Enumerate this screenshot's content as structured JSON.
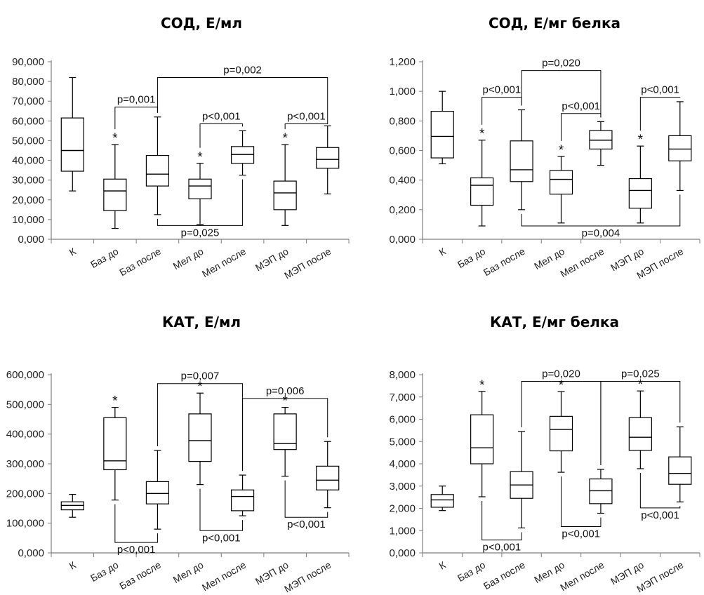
{
  "chart_data": [
    {
      "type": "box",
      "title": "СОД, Е/мл",
      "categories": [
        "К",
        "Баз до",
        "Баз после",
        "Мел до",
        "Мел после",
        "МЭП до",
        "МЭП после"
      ],
      "boxes": [
        {
          "min": 24500,
          "q1": 34500,
          "median": 45000,
          "q3": 61500,
          "max": 82000
        },
        {
          "min": 5500,
          "q1": 14500,
          "median": 24500,
          "q3": 30500,
          "max": 48000
        },
        {
          "min": 12500,
          "q1": 27000,
          "median": 33000,
          "q3": 42500,
          "max": 62000
        },
        {
          "min": 7500,
          "q1": 20500,
          "median": 27000,
          "q3": 30500,
          "max": 38500
        },
        {
          "min": 32500,
          "q1": 38500,
          "median": 43000,
          "q3": 47000,
          "max": 55000
        },
        {
          "min": 7000,
          "q1": 15000,
          "median": 23500,
          "q3": 29500,
          "max": 48000
        },
        {
          "min": 23000,
          "q1": 36000,
          "median": 40500,
          "q3": 46500,
          "max": 57500
        }
      ],
      "ylim": [
        0,
        90000
      ],
      "yticks": [
        0,
        10000,
        20000,
        30000,
        40000,
        50000,
        60000,
        70000,
        80000,
        90000
      ],
      "ytick_labels": [
        "0,000",
        "10,000",
        "20,000",
        "30,000",
        "40,000",
        "50,000",
        "60,000",
        "70,000",
        "80,000",
        "90,000"
      ],
      "significance_markers": [
        {
          "label": "*",
          "category": 1
        },
        {
          "label": "*",
          "category": 3
        },
        {
          "label": "*",
          "category": 5
        }
      ],
      "comparisons": [
        {
          "from": 1,
          "to": 2,
          "label": "p=0,001",
          "side": "top",
          "y": 67000
        },
        {
          "from": 3,
          "to": 4,
          "label": "p<0,001",
          "side": "top",
          "y": 58500
        },
        {
          "from": 5,
          "to": 6,
          "label": "p<0,001",
          "side": "top",
          "y": 58500
        },
        {
          "from": 2,
          "to": 6,
          "label": "p=0,002",
          "side": "top",
          "y": 82000
        },
        {
          "from": 2,
          "to": 4,
          "label": "p=0,025",
          "side": "bottom",
          "y": 7000
        }
      ]
    },
    {
      "type": "box",
      "title": "СОД, Е/мг белка",
      "categories": [
        "К",
        "Баз до",
        "Баз после",
        "Мел до",
        "Мел после",
        "МЭП до",
        "МЭП после"
      ],
      "boxes": [
        {
          "min": 0.51,
          "q1": 0.55,
          "median": 0.695,
          "q3": 0.865,
          "max": 1.0
        },
        {
          "min": 0.09,
          "q1": 0.23,
          "median": 0.365,
          "q3": 0.415,
          "max": 0.67
        },
        {
          "min": 0.2,
          "q1": 0.39,
          "median": 0.47,
          "q3": 0.665,
          "max": 0.875
        },
        {
          "min": 0.11,
          "q1": 0.305,
          "median": 0.405,
          "q3": 0.465,
          "max": 0.56
        },
        {
          "min": 0.5,
          "q1": 0.61,
          "median": 0.67,
          "q3": 0.735,
          "max": 0.795
        },
        {
          "min": 0.11,
          "q1": 0.21,
          "median": 0.33,
          "q3": 0.41,
          "max": 0.63
        },
        {
          "min": 0.33,
          "q1": 0.53,
          "median": 0.61,
          "q3": 0.7,
          "max": 0.93
        }
      ],
      "ylim": [
        0,
        1.2
      ],
      "yticks": [
        0,
        0.2,
        0.4,
        0.6,
        0.8,
        1.0,
        1.2
      ],
      "ytick_labels": [
        "0,000",
        "0,200",
        "0,400",
        "0,600",
        "0,800",
        "1,000",
        "1,200"
      ],
      "significance_markers": [
        {
          "label": "*",
          "category": 1
        },
        {
          "label": "*",
          "category": 3
        },
        {
          "label": "*",
          "category": 5
        }
      ],
      "comparisons": [
        {
          "from": 1,
          "to": 2,
          "label": "p<0,001",
          "side": "top",
          "y": 0.96
        },
        {
          "from": 3,
          "to": 4,
          "label": "p<0,001",
          "side": "top",
          "y": 0.85
        },
        {
          "from": 5,
          "to": 6,
          "label": "p<0,001",
          "side": "top",
          "y": 0.96
        },
        {
          "from": 2,
          "to": 4,
          "label": "p=0,020",
          "side": "top",
          "y": 1.14
        },
        {
          "from": 2,
          "to": 6,
          "label": "p=0,004",
          "side": "bottom",
          "y": 0.09
        }
      ]
    },
    {
      "type": "box",
      "title": "КАТ, Е/мл",
      "categories": [
        "К",
        "Баз до",
        "Баз после",
        "Мел до",
        "Мел после",
        "МЭП до",
        "МЭП после"
      ],
      "boxes": [
        {
          "min": 120000,
          "q1": 145000,
          "median": 160000,
          "q3": 172000,
          "max": 197000
        },
        {
          "min": 178000,
          "q1": 280000,
          "median": 310000,
          "q3": 455000,
          "max": 490000
        },
        {
          "min": 80000,
          "q1": 165000,
          "median": 200000,
          "q3": 240000,
          "max": 345000
        },
        {
          "min": 230000,
          "q1": 308000,
          "median": 378000,
          "q3": 468000,
          "max": 538000
        },
        {
          "min": 125000,
          "q1": 142000,
          "median": 190000,
          "q3": 212000,
          "max": 262000
        },
        {
          "min": 258000,
          "q1": 348000,
          "median": 368000,
          "q3": 468000,
          "max": 490000
        },
        {
          "min": 152000,
          "q1": 212000,
          "median": 245000,
          "q3": 292000,
          "max": 375000
        }
      ],
      "ylim": [
        0,
        600000
      ],
      "yticks": [
        0,
        100000,
        200000,
        300000,
        400000,
        500000,
        600000
      ],
      "ytick_labels": [
        "0,000",
        "100,000",
        "200,000",
        "300,000",
        "400,000",
        "500,000",
        "600,000"
      ],
      "significance_markers": [
        {
          "label": "*",
          "category": 1
        },
        {
          "label": "*",
          "category": 3
        },
        {
          "label": "*",
          "category": 5
        }
      ],
      "comparisons": [
        {
          "from": 2,
          "to": 4,
          "label": "p=0,007",
          "side": "top",
          "y": 570000
        },
        {
          "from": 4,
          "to": 6,
          "label": "p=0,006",
          "side": "top",
          "y": 520000
        },
        {
          "from": 1,
          "to": 2,
          "label": "p<0,001",
          "side": "bottom",
          "y": 35000
        },
        {
          "from": 3,
          "to": 4,
          "label": "p<0,001",
          "side": "bottom",
          "y": 75000
        },
        {
          "from": 5,
          "to": 6,
          "label": "p<0,001",
          "side": "bottom",
          "y": 120000
        }
      ]
    },
    {
      "type": "box",
      "title": "КАТ, Е/мг белка",
      "categories": [
        "К",
        "Баз до",
        "Баз после",
        "Мел до",
        "Мел после",
        "МЭП до",
        "МЭП после"
      ],
      "boxes": [
        {
          "min": 1900,
          "q1": 2050,
          "median": 2380,
          "q3": 2620,
          "max": 3000
        },
        {
          "min": 2520,
          "q1": 4000,
          "median": 4720,
          "q3": 6200,
          "max": 7250
        },
        {
          "min": 1120,
          "q1": 2450,
          "median": 3050,
          "q3": 3650,
          "max": 5450
        },
        {
          "min": 3620,
          "q1": 4580,
          "median": 5540,
          "q3": 6130,
          "max": 7240
        },
        {
          "min": 1780,
          "q1": 2210,
          "median": 2790,
          "q3": 3320,
          "max": 3750
        },
        {
          "min": 3780,
          "q1": 4600,
          "median": 5190,
          "q3": 6070,
          "max": 7270
        },
        {
          "min": 2290,
          "q1": 3080,
          "median": 3570,
          "q3": 4310,
          "max": 5660
        }
      ],
      "ylim": [
        0,
        8000
      ],
      "yticks": [
        0,
        1000,
        2000,
        3000,
        4000,
        5000,
        6000,
        7000,
        8000
      ],
      "ytick_labels": [
        "0,000",
        "1,000",
        "2,000",
        "3,000",
        "4,000",
        "5,000",
        "6,000",
        "7,000",
        "8,000"
      ],
      "significance_markers": [
        {
          "label": "*",
          "category": 1
        },
        {
          "label": "*",
          "category": 3
        },
        {
          "label": "*",
          "category": 5
        }
      ],
      "comparisons": [
        {
          "from": 2,
          "to": 4,
          "label": "p=0,020",
          "side": "top",
          "y": 7700
        },
        {
          "from": 4,
          "to": 6,
          "label": "p=0,025",
          "side": "top",
          "y": 7700
        },
        {
          "from": 1,
          "to": 2,
          "label": "p<0,001",
          "side": "bottom",
          "y": 580
        },
        {
          "from": 3,
          "to": 4,
          "label": "p<0,001",
          "side": "bottom",
          "y": 1180
        },
        {
          "from": 5,
          "to": 6,
          "label": "p<0,001",
          "side": "bottom",
          "y": 2020
        }
      ]
    }
  ]
}
